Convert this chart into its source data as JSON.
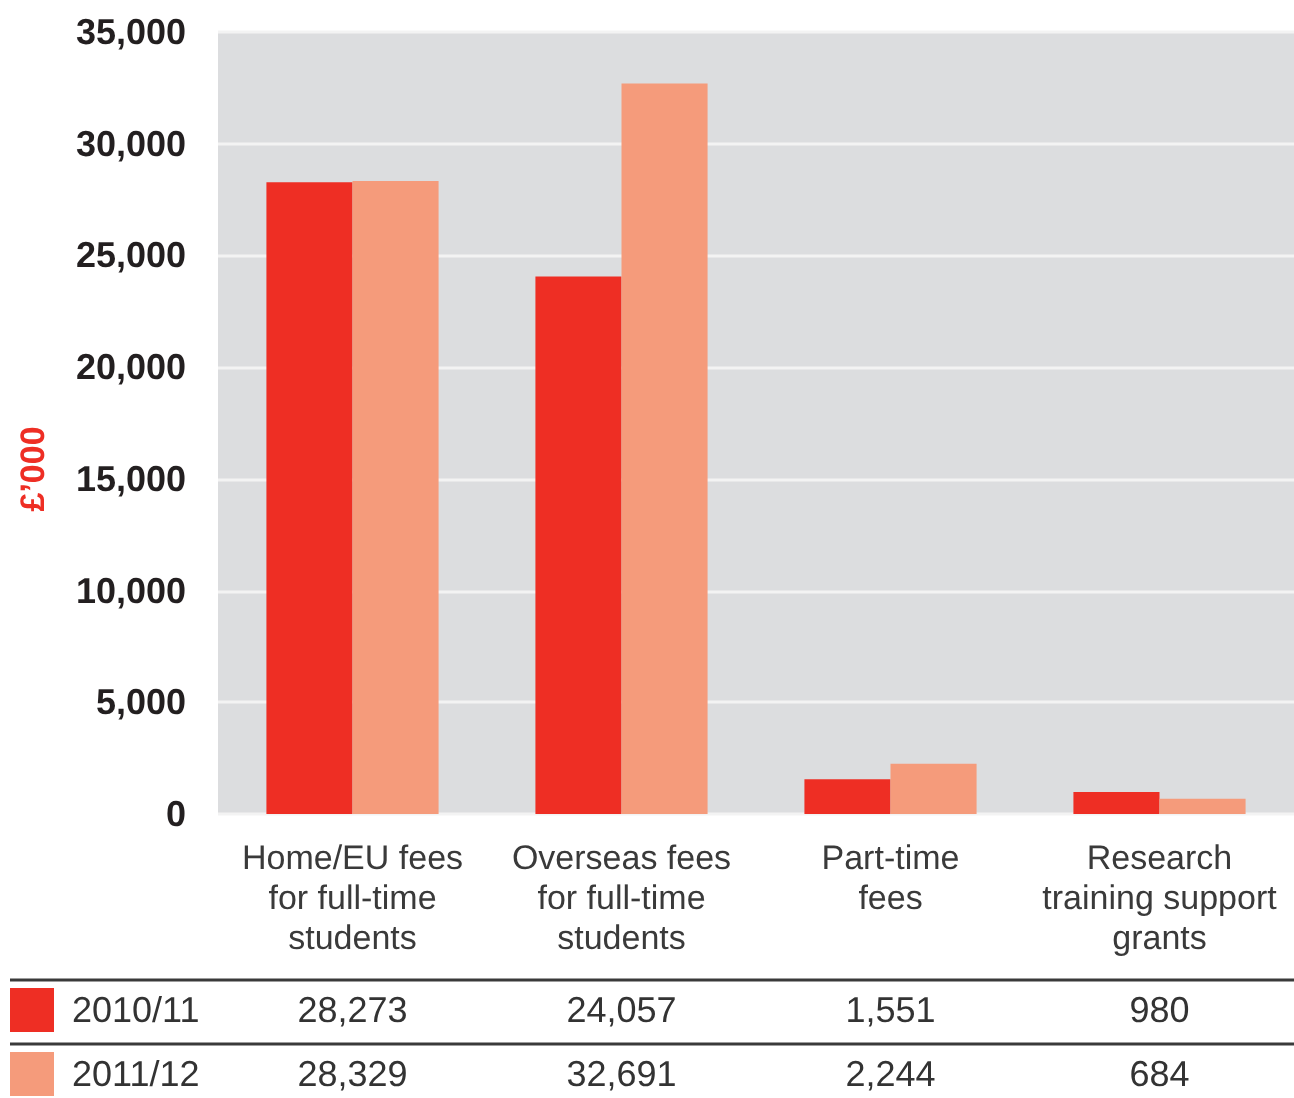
{
  "chart_data": {
    "type": "bar",
    "ylabel": "£’000",
    "categories": [
      "Home/EU fees\nfor full-time\nstudents",
      "Overseas fees\nfor full-time\nstudents",
      "Part-time\nfees",
      "Research\ntraining support\ngrants"
    ],
    "series": [
      {
        "name": "2010/11",
        "color": "#ee2e24",
        "values": [
          28273,
          24057,
          1551,
          980
        ],
        "value_labels": [
          "28,273",
          "24,057",
          "1,551",
          "980"
        ]
      },
      {
        "name": "2011/12",
        "color": "#f59b7b",
        "values": [
          28329,
          32691,
          2244,
          684
        ],
        "value_labels": [
          "28,329",
          "32,691",
          "2,244",
          "684"
        ]
      }
    ],
    "ylim": [
      0,
      35000
    ],
    "yticks": [
      0,
      {
        "value": 5000,
        "label": "5,000"
      },
      {
        "value": 10000,
        "label": "10,000"
      },
      {
        "value": 15000,
        "label": "15,000"
      },
      {
        "value": 20000,
        "label": "20,000"
      },
      {
        "value": 25000,
        "label": "25,000"
      },
      {
        "value": 30000,
        "label": "30,000"
      },
      {
        "value": 35000,
        "label": "35,000"
      }
    ],
    "grid": "y",
    "legend": "bottom left"
  }
}
